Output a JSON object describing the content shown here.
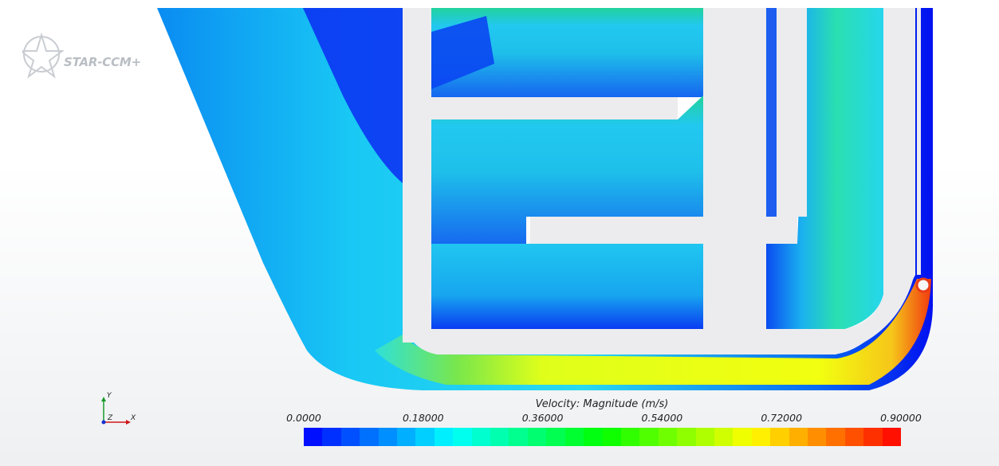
{
  "logo": {
    "text": "STAR-CCM+"
  },
  "axis_triad": {
    "y_label": "Y",
    "z_label": "Z",
    "x_label": "X"
  },
  "legend": {
    "title": "Velocity: Magnitude (m/s)",
    "ticks": [
      "0.0000",
      "0.18000",
      "0.36000",
      "0.54000",
      "0.72000",
      "0.90000"
    ],
    "min": 0.0,
    "max": 0.9,
    "color_count": 32
  },
  "colors": {
    "background_top": "#ffffff",
    "background_bottom": "#eef0f2",
    "wall": "#ececee",
    "colormap": [
      "#0000ff",
      "#00ffff",
      "#00ff00",
      "#ffff00",
      "#ff0000"
    ]
  }
}
